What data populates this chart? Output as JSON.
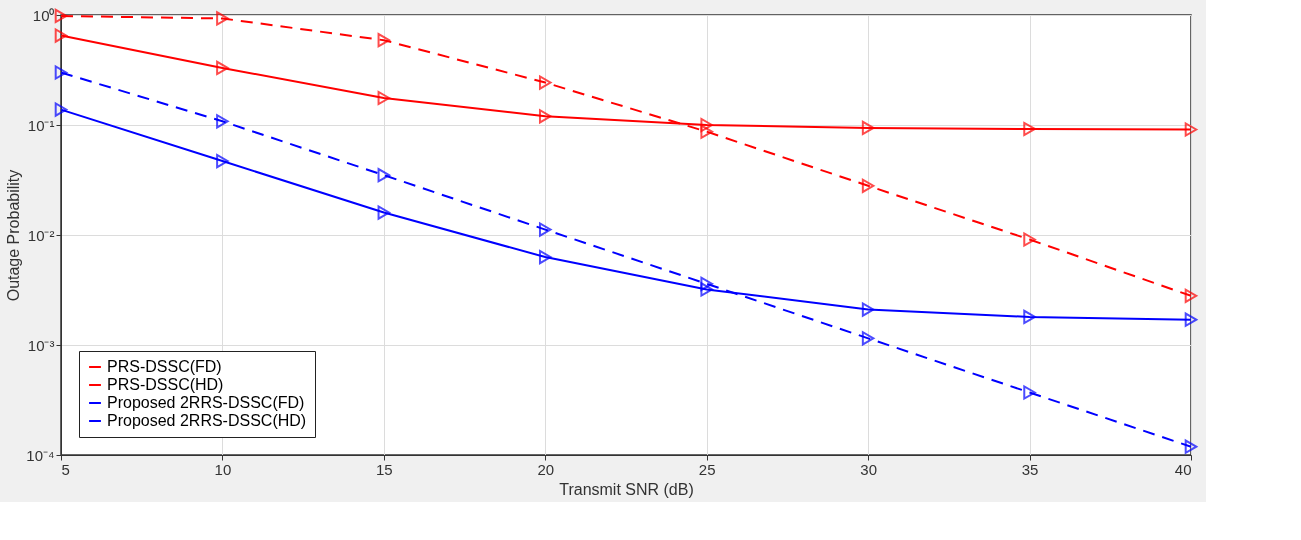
{
  "chart_data": {
    "type": "line",
    "xlabel": "Transmit SNR (dB)",
    "ylabel": "Outage Probability",
    "x": [
      5,
      10,
      15,
      20,
      25,
      30,
      35,
      40
    ],
    "series": [
      {
        "name": "PRS-DSSC(FD)",
        "color": "#ff0000",
        "line_style": "solid",
        "values": [
          0.65,
          0.33,
          0.176,
          0.12,
          0.1,
          0.094,
          0.092,
          0.091
        ]
      },
      {
        "name": "PRS-DSSC(HD)",
        "color": "#ff0000",
        "line_style": "dashed",
        "values": [
          0.98,
          0.93,
          0.59,
          0.243,
          0.087,
          0.028,
          0.0091,
          0.0028
        ]
      },
      {
        "name": "Proposed 2RRS-DSSC(FD)",
        "color": "#0000ff",
        "line_style": "solid",
        "values": [
          0.138,
          0.047,
          0.016,
          0.0063,
          0.0032,
          0.0021,
          0.0018,
          0.0017
        ]
      },
      {
        "name": "Proposed 2RRS-DSSC(HD)",
        "color": "#0000ff",
        "line_style": "dashed",
        "values": [
          0.3,
          0.108,
          0.035,
          0.0112,
          0.0036,
          0.00115,
          0.00037,
          0.000119
        ]
      }
    ],
    "xlim": [
      5,
      40
    ],
    "xticks": [
      5,
      10,
      15,
      20,
      25,
      30,
      35,
      40
    ],
    "ylim": [
      0.0001,
      1
    ],
    "log": true,
    "yticks": [
      {
        "value": 0.0001,
        "label": "10⁻⁴"
      },
      {
        "value": 0.001,
        "label": "10⁻³"
      },
      {
        "value": 0.01,
        "label": "10⁻²"
      },
      {
        "value": 0.1,
        "label": "10⁻¹"
      },
      {
        "value": 1,
        "label": "10⁰"
      }
    ],
    "grid": true,
    "legend": "bottom left",
    "marker": "triangle"
  }
}
